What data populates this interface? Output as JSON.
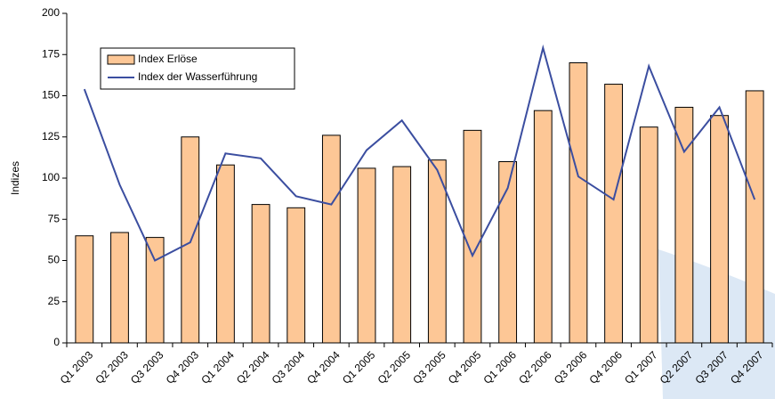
{
  "chart_data": {
    "type": "bar_line",
    "y_label": "Indizes",
    "categories": [
      "Q1 2003",
      "Q2 2003",
      "Q3 2003",
      "Q4 2003",
      "Q1 2004",
      "Q2 2004",
      "Q3 2004",
      "Q4 2004",
      "Q1 2005",
      "Q2 2005",
      "Q3 2005",
      "Q4 2005",
      "Q1 2006",
      "Q2 2006",
      "Q3 2006",
      "Q4 2006",
      "Q1 2007",
      "Q2 2007",
      "Q3 2007",
      "Q4 2007"
    ],
    "series": [
      {
        "name": "Index Erlöse",
        "type": "bar",
        "color": "#fdc796",
        "values": [
          65,
          67,
          64,
          125,
          108,
          84,
          82,
          126,
          106,
          107,
          111,
          129,
          110,
          141,
          170,
          157,
          131,
          143,
          138,
          153
        ]
      },
      {
        "name": "Index der Wasserführung",
        "type": "line",
        "color": "#3b4ea0",
        "values": [
          154,
          96,
          50,
          61,
          115,
          112,
          89,
          84,
          117,
          135,
          105,
          53,
          94,
          179,
          101,
          87,
          168,
          116,
          143,
          87
        ]
      }
    ],
    "ylim": [
      0,
      200
    ],
    "yticks": [
      0,
      25,
      50,
      75,
      100,
      125,
      150,
      175,
      200
    ],
    "legend": "top-left"
  }
}
